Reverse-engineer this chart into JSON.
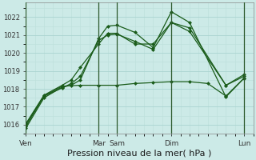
{
  "background_color": "#cceae7",
  "grid_major_color": "#aad4d0",
  "grid_minor_color": "#bbdeda",
  "line_color": "#1a5c1a",
  "xlabel": "Pression niveau de la mer( hPa )",
  "xlabel_fontsize": 8,
  "ylim": [
    1015.5,
    1022.8
  ],
  "yticks": [
    1016,
    1017,
    1018,
    1019,
    1020,
    1021,
    1022
  ],
  "xtick_labels": [
    "Ven",
    "Mar",
    "Sam",
    "Dim",
    "Lun"
  ],
  "xtick_positions": [
    0,
    8,
    10,
    16,
    24
  ],
  "vlines_x": [
    0,
    8,
    10,
    16,
    24
  ],
  "xlim": [
    0,
    25
  ],
  "line1_x": [
    0,
    2,
    4,
    5,
    6,
    8,
    9,
    10,
    12,
    14,
    16,
    18,
    22,
    24
  ],
  "line1_y": [
    1015.8,
    1017.5,
    1018.1,
    1018.2,
    1018.5,
    1020.8,
    1021.5,
    1021.55,
    1021.15,
    1020.3,
    1022.3,
    1021.7,
    1017.55,
    1018.6
  ],
  "line2_x": [
    0,
    2,
    4,
    5,
    6,
    8,
    9,
    10,
    12,
    14,
    16,
    18,
    22,
    24
  ],
  "line2_y": [
    1015.9,
    1017.6,
    1018.05,
    1018.3,
    1018.7,
    1020.7,
    1021.0,
    1021.05,
    1020.65,
    1020.2,
    1021.7,
    1021.2,
    1018.2,
    1018.7
  ],
  "line3_x": [
    0,
    2,
    4,
    5,
    6,
    8,
    9,
    10,
    12,
    14,
    16,
    18,
    22,
    24
  ],
  "line3_y": [
    1016.05,
    1017.65,
    1018.2,
    1018.5,
    1019.2,
    1020.5,
    1021.1,
    1021.1,
    1020.5,
    1020.5,
    1021.7,
    1021.4,
    1018.2,
    1018.8
  ],
  "line4_x": [
    0,
    2,
    4,
    6,
    8,
    10,
    12,
    14,
    16,
    18,
    20,
    22,
    24
  ],
  "line4_y": [
    1016.0,
    1017.6,
    1018.15,
    1018.2,
    1018.2,
    1018.2,
    1018.3,
    1018.35,
    1018.4,
    1018.4,
    1018.3,
    1017.6,
    1018.6
  ],
  "marker_size": 2.5,
  "linewidth": 0.9
}
